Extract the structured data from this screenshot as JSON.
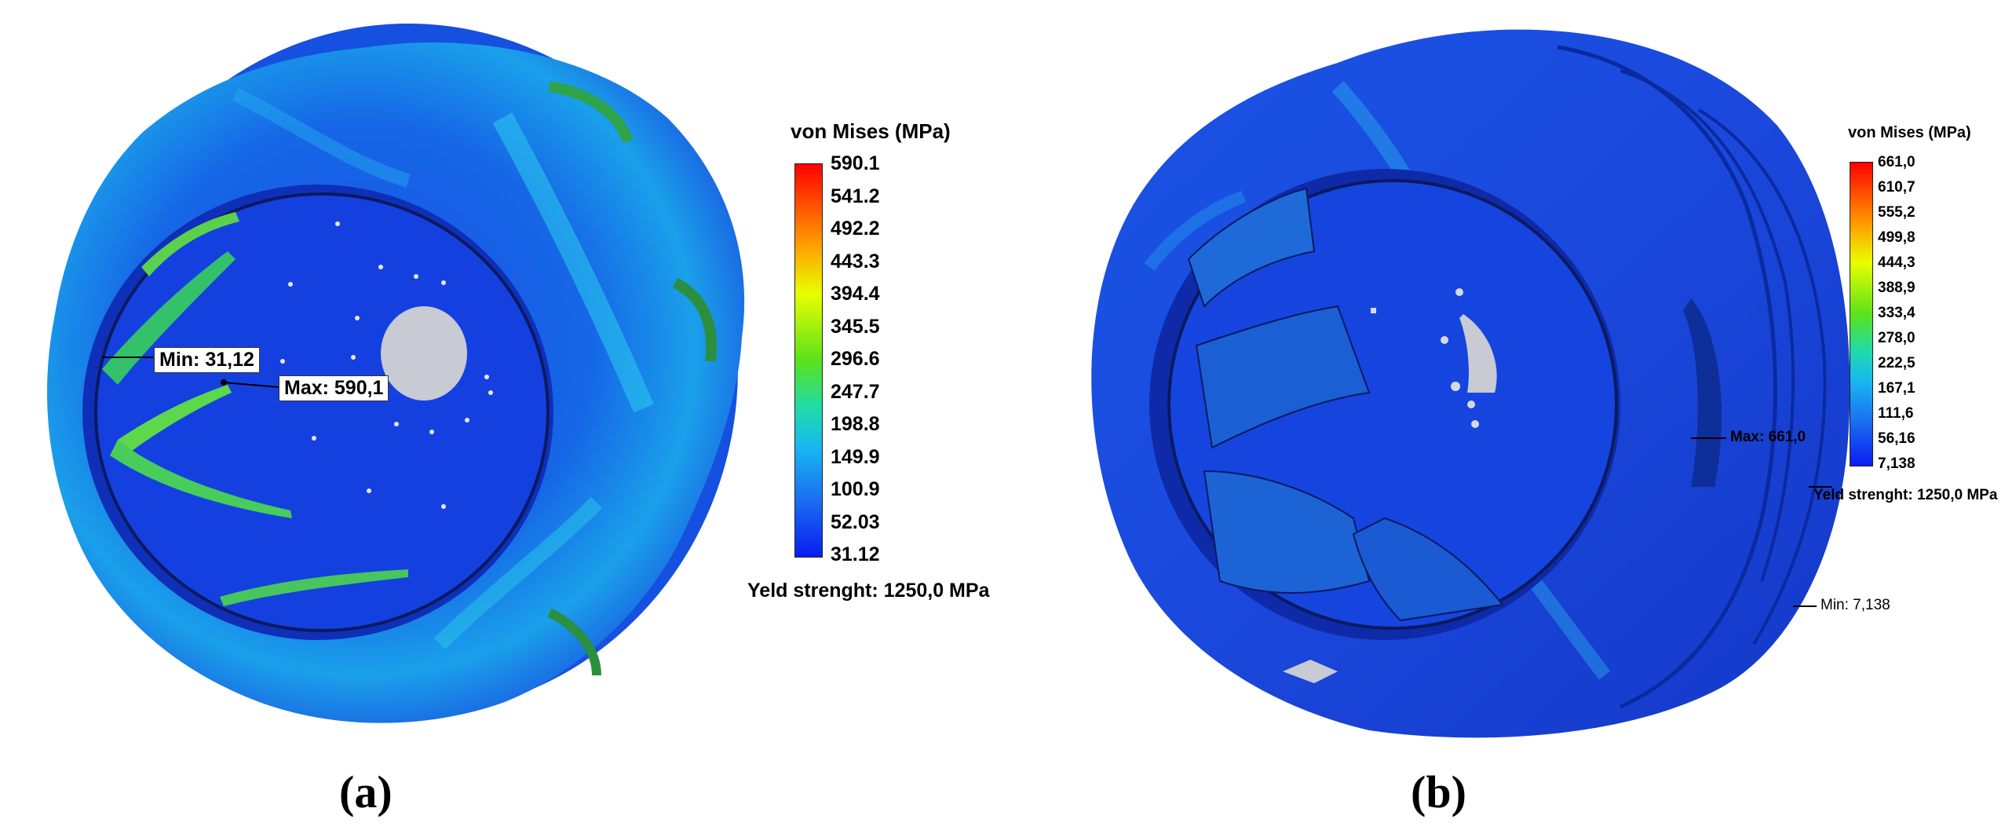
{
  "panels": [
    {
      "label": "(a)",
      "legend": {
        "title": "von Mises (MPa)",
        "ticks": [
          "590.1",
          "541.2",
          "492.2",
          "443.3",
          "394.4",
          "345.5",
          "296.6",
          "247.7",
          "198.8",
          "149.9",
          "100.9",
          "52.03",
          "31.12"
        ],
        "yield_text": "Yeld strenght: 1250,0 MPa"
      },
      "min_label": "Min: 31,12",
      "max_label": "Max: 590,1"
    },
    {
      "label": "(b)",
      "legend": {
        "title": "von Mises (MPa)",
        "ticks": [
          "661,0",
          "610,7",
          "555,2",
          "499,8",
          "444,3",
          "388,9",
          "333,4",
          "278,0",
          "222,5",
          "167,1",
          "111,6",
          "56,16",
          "7,138"
        ],
        "yield_text": "Yeld strenght: 1250,0 MPa"
      },
      "min_label": "Min: 7,138",
      "max_label": "Max: 661,0"
    }
  ],
  "colors": {
    "low": "#0a1cf0",
    "mid": "#18b8f0",
    "high": "#ff0000",
    "hub": "#c8cad4"
  }
}
